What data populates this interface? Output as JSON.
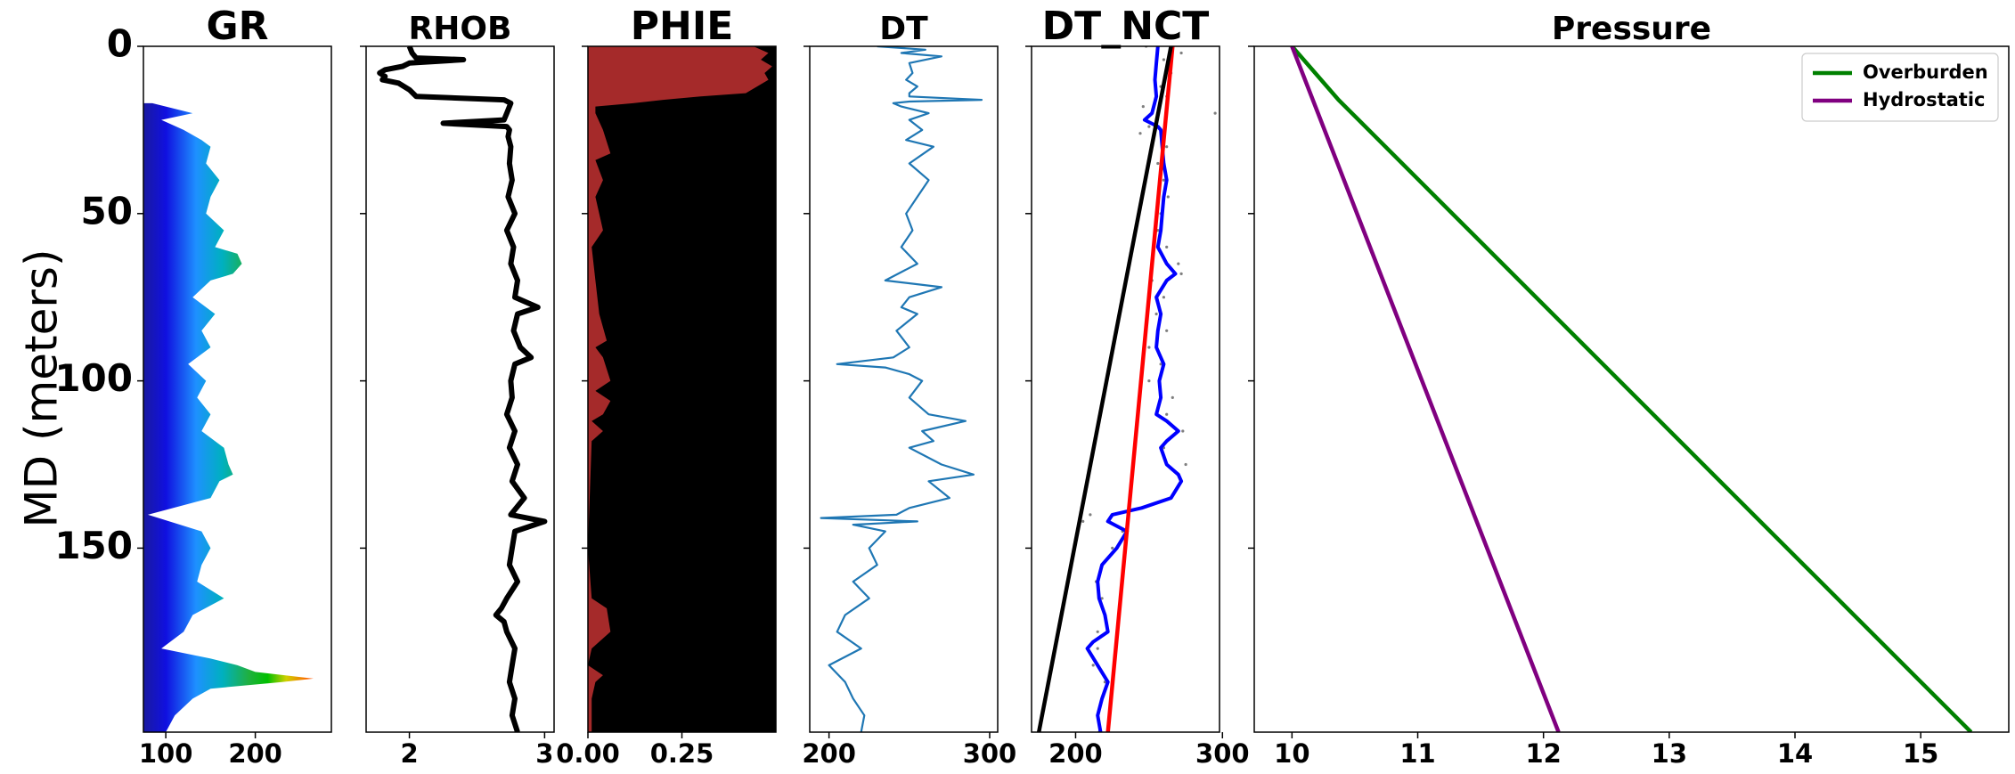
{
  "figure": {
    "ylabel": "MD (meters)",
    "ylim": [
      0,
      205
    ],
    "y_ticks": [
      {
        "value": 0,
        "label": "0"
      },
      {
        "value": 50,
        "label": "50"
      },
      {
        "value": 100,
        "label": "100"
      },
      {
        "value": 150,
        "label": "150"
      }
    ]
  },
  "chart_data": [
    {
      "type": "area",
      "title": "GR",
      "xlim": [
        75,
        285
      ],
      "x_ticks": [
        {
          "value": 100,
          "label": "100"
        },
        {
          "value": 200,
          "label": "200"
        }
      ],
      "fill_colormap": "rainbow",
      "depth": [
        17,
        20,
        22,
        25,
        28,
        30,
        35,
        40,
        45,
        50,
        55,
        60,
        62,
        65,
        68,
        70,
        75,
        80,
        85,
        90,
        95,
        100,
        105,
        110,
        115,
        120,
        125,
        128,
        130,
        135,
        140,
        145,
        150,
        155,
        160,
        165,
        170,
        175,
        180,
        183,
        185,
        187,
        189,
        190,
        192,
        195,
        200,
        205
      ],
      "values": [
        85,
        130,
        95,
        120,
        140,
        150,
        145,
        160,
        150,
        145,
        165,
        155,
        180,
        185,
        175,
        150,
        130,
        155,
        140,
        150,
        125,
        145,
        135,
        150,
        140,
        165,
        170,
        175,
        160,
        150,
        80,
        140,
        150,
        140,
        135,
        165,
        130,
        120,
        95,
        150,
        180,
        200,
        265,
        230,
        150,
        130,
        110,
        100
      ]
    },
    {
      "type": "line",
      "title": "RHOB",
      "xlim": [
        1.68,
        3.07
      ],
      "x_ticks": [
        {
          "value": 2,
          "label": "2"
        },
        {
          "value": 3,
          "label": "3"
        }
      ],
      "line_color": "#000000",
      "depth": [
        0,
        2,
        3.5,
        4,
        5,
        6,
        7,
        8,
        9,
        10,
        11,
        13,
        15,
        16,
        17,
        18,
        20,
        22,
        23,
        24,
        25,
        27,
        30,
        35,
        40,
        45,
        50,
        55,
        60,
        65,
        70,
        75,
        78,
        80,
        85,
        90,
        93,
        95,
        100,
        105,
        110,
        115,
        120,
        125,
        130,
        135,
        140,
        142,
        145,
        150,
        155,
        160,
        165,
        168,
        170,
        172,
        175,
        180,
        185,
        190,
        195,
        200,
        205
      ],
      "values": [
        2.0,
        2.02,
        2.05,
        2.4,
        2.0,
        1.95,
        1.82,
        1.78,
        1.82,
        1.8,
        1.92,
        2.0,
        2.05,
        2.7,
        2.75,
        2.74,
        2.72,
        2.7,
        2.25,
        2.72,
        2.74,
        2.73,
        2.75,
        2.74,
        2.76,
        2.73,
        2.78,
        2.72,
        2.77,
        2.75,
        2.8,
        2.78,
        2.95,
        2.8,
        2.77,
        2.82,
        2.9,
        2.78,
        2.75,
        2.76,
        2.72,
        2.78,
        2.74,
        2.8,
        2.76,
        2.85,
        2.75,
        3.0,
        2.78,
        2.76,
        2.74,
        2.8,
        2.72,
        2.68,
        2.64,
        2.7,
        2.72,
        2.78,
        2.76,
        2.74,
        2.78,
        2.76,
        2.8
      ]
    },
    {
      "type": "area",
      "title": "PHIE",
      "xlim": [
        0.0,
        0.5
      ],
      "x_ticks": [
        {
          "value": 0.0,
          "label": "0.00"
        },
        {
          "value": 0.25,
          "label": "0.25"
        }
      ],
      "fill_color": "#a52a2a",
      "background_color": "#000000",
      "depth": [
        0,
        2,
        4,
        6,
        8,
        10,
        12,
        14,
        15,
        16,
        17,
        18,
        20,
        25,
        32,
        34,
        40,
        45,
        55,
        60,
        70,
        80,
        88,
        90,
        93,
        100,
        103,
        106,
        110,
        112,
        115,
        118,
        150,
        165,
        168,
        175,
        180,
        185,
        188,
        190,
        195,
        205
      ],
      "values": [
        0.44,
        0.48,
        0.46,
        0.49,
        0.47,
        0.48,
        0.45,
        0.42,
        0.3,
        0.2,
        0.12,
        0.02,
        0.02,
        0.04,
        0.06,
        0.02,
        0.04,
        0.02,
        0.04,
        0.01,
        0.02,
        0.03,
        0.05,
        0.02,
        0.04,
        0.06,
        0.02,
        0.06,
        0.04,
        0.01,
        0.04,
        0.01,
        0.0,
        0.01,
        0.05,
        0.06,
        0.01,
        0.0,
        0.04,
        0.02,
        0.01,
        0.01
      ]
    },
    {
      "type": "line",
      "title": "DT",
      "xlim": [
        188,
        305
      ],
      "x_ticks": [
        {
          "value": 200,
          "label": "200"
        },
        {
          "value": 300,
          "label": "300"
        }
      ],
      "line_color": "#1f77b4",
      "depth": [
        0,
        1,
        2,
        3,
        5,
        8,
        10,
        12,
        14,
        15,
        16,
        16.5,
        17,
        18,
        20,
        22,
        25,
        28,
        30,
        35,
        40,
        45,
        50,
        55,
        60,
        65,
        70,
        72,
        75,
        78,
        80,
        85,
        90,
        93,
        95,
        96,
        98,
        100,
        105,
        110,
        112,
        115,
        118,
        120,
        125,
        128,
        130,
        135,
        138,
        140,
        141,
        142,
        143,
        145,
        150,
        155,
        160,
        165,
        170,
        175,
        180,
        185,
        190,
        195,
        200,
        205
      ],
      "values": [
        230,
        260,
        245,
        270,
        250,
        252,
        248,
        255,
        250,
        250,
        295,
        250,
        240,
        245,
        262,
        250,
        258,
        248,
        265,
        250,
        262,
        255,
        248,
        252,
        245,
        255,
        235,
        270,
        250,
        245,
        255,
        242,
        250,
        240,
        205,
        235,
        250,
        258,
        250,
        262,
        285,
        258,
        265,
        250,
        270,
        290,
        262,
        275,
        250,
        242,
        195,
        255,
        215,
        235,
        225,
        230,
        215,
        225,
        210,
        205,
        220,
        200,
        210,
        215,
        222,
        220
      ]
    },
    {
      "type": "line",
      "title": "DT_NCT",
      "xlim": [
        170,
        298
      ],
      "x_ticks": [
        {
          "value": 200,
          "label": "200"
        },
        {
          "value": 300,
          "label": "300"
        }
      ],
      "series": [
        {
          "style": "scatter",
          "color": "#7f7f7f",
          "depth": [
            0,
            2,
            4,
            8,
            12,
            15,
            18,
            20,
            24,
            26,
            30,
            35,
            40,
            45,
            50,
            55,
            60,
            65,
            68,
            70,
            75,
            80,
            85,
            90,
            95,
            100,
            105,
            110,
            115,
            120,
            125,
            130,
            135,
            140,
            142,
            145,
            150,
            155,
            160,
            165,
            170,
            175,
            180,
            185,
            190,
            195,
            200,
            205
          ],
          "values": [
            248,
            272,
            260,
            265,
            258,
            262,
            246,
            295,
            250,
            244,
            262,
            256,
            260,
            263,
            258,
            256,
            262,
            270,
            272,
            252,
            260,
            255,
            262,
            250,
            258,
            250,
            266,
            262,
            273,
            260,
            275,
            272,
            265,
            210,
            205,
            232,
            225,
            218,
            214,
            218,
            220,
            215,
            215,
            212,
            220,
            218,
            215,
            216
          ]
        },
        {
          "style": "line",
          "color": "#0000ff",
          "depth": [
            0,
            5,
            10,
            15,
            20,
            22,
            24,
            25,
            30,
            35,
            40,
            45,
            50,
            55,
            60,
            65,
            68,
            70,
            75,
            80,
            85,
            90,
            95,
            100,
            105,
            110,
            112,
            115,
            118,
            120,
            125,
            128,
            130,
            135,
            138,
            140,
            142,
            145,
            150,
            155,
            160,
            165,
            170,
            175,
            178,
            180,
            185,
            190,
            195,
            200,
            205
          ],
          "values": [
            256,
            255,
            254,
            255,
            252,
            247,
            256,
            258,
            259,
            260,
            262,
            260,
            259,
            258,
            256,
            262,
            268,
            262,
            255,
            258,
            256,
            255,
            260,
            257,
            258,
            255,
            262,
            270,
            262,
            258,
            262,
            270,
            272,
            265,
            245,
            225,
            222,
            235,
            228,
            218,
            215,
            216,
            220,
            222,
            212,
            208,
            215,
            222,
            218,
            215,
            217
          ]
        },
        {
          "style": "line",
          "color": "#ff0000",
          "depth": [
            0,
            205
          ],
          "values": [
            266,
            222
          ]
        },
        {
          "style": "line",
          "color": "#000000",
          "depth": [
            0,
            205
          ],
          "values": [
            265,
            175
          ]
        }
      ]
    },
    {
      "type": "line",
      "title": "Pressure",
      "xlim": [
        9.7,
        15.7
      ],
      "x_ticks": [
        {
          "value": 10,
          "label": "10"
        },
        {
          "value": 11,
          "label": "11"
        },
        {
          "value": 12,
          "label": "12"
        },
        {
          "value": 13,
          "label": "13"
        },
        {
          "value": 14,
          "label": "14"
        },
        {
          "value": 15,
          "label": "15"
        }
      ],
      "legend": "top-right",
      "series": [
        {
          "name": "Overburden",
          "color": "#008000",
          "depth": [
            0,
            16,
            205
          ],
          "values": [
            10.0,
            10.37,
            15.4
          ]
        },
        {
          "name": "Hydrostatic",
          "color": "#800080",
          "depth": [
            0,
            205
          ],
          "values": [
            10.0,
            12.12
          ]
        }
      ]
    }
  ]
}
